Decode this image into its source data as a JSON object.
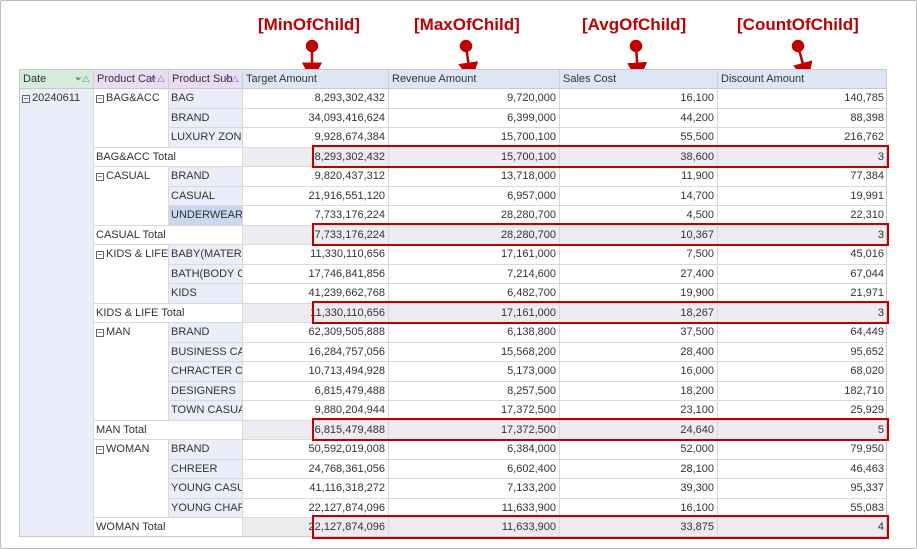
{
  "annotations": {
    "min": "[MinOfChild]",
    "max": "[MaxOfChild]",
    "avg": "[AvgOfChild]",
    "count": "[CountOfChild]"
  },
  "headers": {
    "date": "Date",
    "category": "Product Cat",
    "subcategory": "Product Sub",
    "target": "Target Amount",
    "revenue": "Revenue Amount",
    "sales": "Sales Cost",
    "discount": "Discount Amount",
    "filter_icon": "funnel-icon",
    "sort_icon": "sort-asc-icon"
  },
  "date_value": "20240611",
  "groups": [
    {
      "category": "BAG&ACC",
      "rows": [
        {
          "sub": "BAG",
          "target": "8,293,302,432",
          "revenue": "9,720,000",
          "sales": "16,100",
          "discount": "140,785"
        },
        {
          "sub": "BRAND",
          "target": "34,093,416,624",
          "revenue": "6,399,000",
          "sales": "44,200",
          "discount": "88,398"
        },
        {
          "sub": "LUXURY ZONE",
          "target": "9,928,674,384",
          "revenue": "15,700,100",
          "sales": "55,500",
          "discount": "216,762"
        }
      ],
      "total": {
        "label": "BAG&ACC Total",
        "target": "8,293,302,432",
        "revenue": "15,700,100",
        "sales": "38,600",
        "discount": "3"
      }
    },
    {
      "category": "CASUAL",
      "rows": [
        {
          "sub": "BRAND",
          "target": "9,820,437,312",
          "revenue": "13,718,000",
          "sales": "11,900",
          "discount": "77,384"
        },
        {
          "sub": "CASUAL",
          "target": "21,916,551,120",
          "revenue": "6,957,000",
          "sales": "14,700",
          "discount": "19,991"
        },
        {
          "sub": "UNDERWEAR",
          "target": "7,733,176,224",
          "revenue": "28,280,700",
          "sales": "4,500",
          "discount": "22,310",
          "selected": true
        }
      ],
      "total": {
        "label": "CASUAL Total",
        "target": "7,733,176,224",
        "revenue": "28,280,700",
        "sales": "10,367",
        "discount": "3"
      }
    },
    {
      "category": "KIDS & LIFE",
      "rows": [
        {
          "sub": "BABY(MATERNITY",
          "target": "11,330,110,656",
          "revenue": "17,161,000",
          "sales": "7,500",
          "discount": "45,016"
        },
        {
          "sub": "BATH(BODY CAR",
          "target": "17,746,841,856",
          "revenue": "7,214,600",
          "sales": "27,400",
          "discount": "67,044"
        },
        {
          "sub": "KIDS",
          "target": "41,239,662,768",
          "revenue": "6,482,700",
          "sales": "19,900",
          "discount": "21,971"
        }
      ],
      "total": {
        "label": "KIDS & LIFE Total",
        "target": "11,330,110,656",
        "revenue": "17,161,000",
        "sales": "18,267",
        "discount": "3"
      }
    },
    {
      "category": "MAN",
      "rows": [
        {
          "sub": "BRAND",
          "target": "62,309,505,888",
          "revenue": "6,138,800",
          "sales": "37,500",
          "discount": "64,449"
        },
        {
          "sub": "BUSINESS CASU",
          "target": "16,284,757,056",
          "revenue": "15,568,200",
          "sales": "28,400",
          "discount": "95,652"
        },
        {
          "sub": "CHRACTER CASU",
          "target": "10,713,494,928",
          "revenue": "5,173,000",
          "sales": "16,000",
          "discount": "68,020"
        },
        {
          "sub": "DESIGNERS",
          "target": "6,815,479,488",
          "revenue": "8,257,500",
          "sales": "18,200",
          "discount": "182,710"
        },
        {
          "sub": "TOWN CASUAL",
          "target": "9,880,204,944",
          "revenue": "17,372,500",
          "sales": "23,100",
          "discount": "25,929"
        }
      ],
      "total": {
        "label": "MAN Total",
        "target": "6,815,479,488",
        "revenue": "17,372,500",
        "sales": "24,640",
        "discount": "5"
      }
    },
    {
      "category": "WOMAN",
      "rows": [
        {
          "sub": "BRAND",
          "target": "50,592,019,008",
          "revenue": "6,384,000",
          "sales": "52,000",
          "discount": "79,950"
        },
        {
          "sub": "CHREER",
          "target": "24,768,361,056",
          "revenue": "6,602,400",
          "sales": "28,100",
          "discount": "46,463"
        },
        {
          "sub": "YOUNG CASUAL",
          "target": "41,116,318,272",
          "revenue": "7,133,200",
          "sales": "39,300",
          "discount": "95,337"
        },
        {
          "sub": "YOUNG CHARAC",
          "target": "22,127,874,096",
          "revenue": "11,633,900",
          "sales": "16,100",
          "discount": "55,083"
        }
      ],
      "total": {
        "label": "WOMAN Total",
        "target": "22,127,874,096",
        "revenue": "11,633,900",
        "sales": "33,875",
        "discount": "4"
      }
    }
  ],
  "colors": {
    "highlight": "#c00000",
    "row_header": "#d5ecdc",
    "col_header": "#eadcf3",
    "data_header": "#dde6f4"
  }
}
